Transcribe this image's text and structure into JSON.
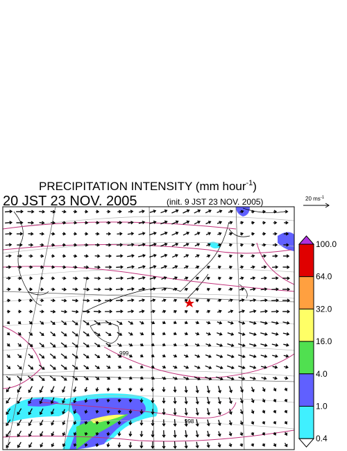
{
  "title": {
    "text": "PRECIPITATION INTENSITY (mm hour",
    "superscript": "-1",
    "close": ")"
  },
  "subtitle": {
    "time": "20 JST 23 NOV. 2005",
    "init": "(init. 9 JST 23 NOV. 2005)"
  },
  "vector_key": {
    "label": "20 ms",
    "superscript": "-1"
  },
  "colorbar": {
    "levels": [
      {
        "label": "100.0",
        "color": "#e00000"
      },
      {
        "label": "64.0",
        "color": "#ffa040"
      },
      {
        "label": "32.0",
        "color": "#ffff66"
      },
      {
        "label": "16.0",
        "color": "#50e050"
      },
      {
        "label": "4.0",
        "color": "#6060ff"
      },
      {
        "label": "1.0",
        "color": "#40f0ff"
      },
      {
        "label": "0.4",
        "color": null
      }
    ],
    "over_color": "#b030e0"
  },
  "contour_labels": [
    "999",
    "998"
  ]
}
